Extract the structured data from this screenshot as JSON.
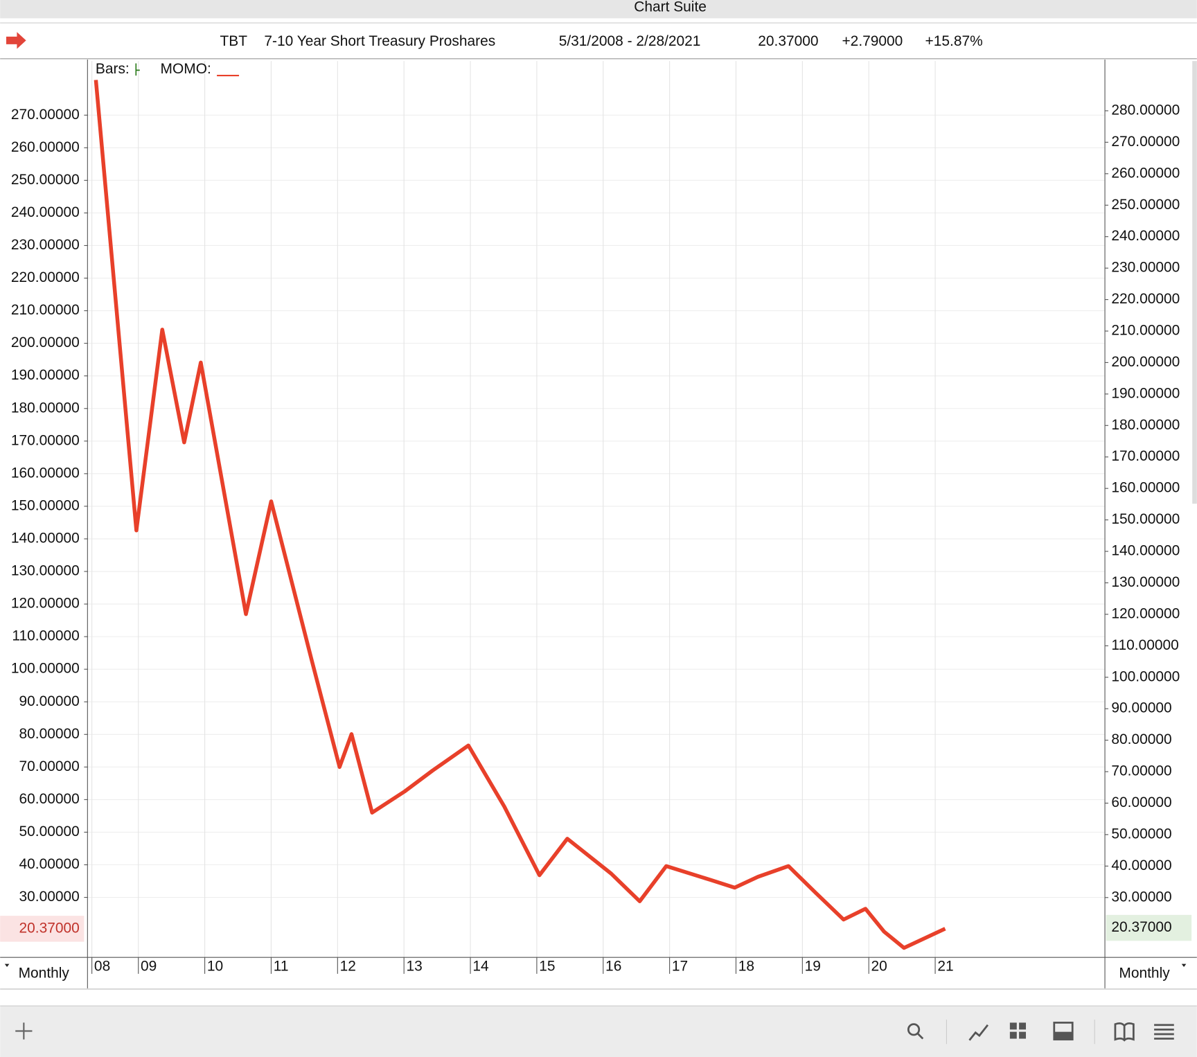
{
  "window": {
    "title": "Chart Suite",
    "header": {
      "symbol": "TBT",
      "name": "7-10 Year Short Treasury Proshares",
      "range": "5/31/2008 - 2/28/2021",
      "change": "+2.79000",
      "change_pct": "+15.87%"
    },
    "legend": {
      "bars": "Bars:",
      "momo": "MOMO:"
    },
    "period_left": "Monthly",
    "period_right": "Monthly"
  },
  "chart_data": {
    "type": "line",
    "title": "TBT 7-10 Year Short Treasury Proshares",
    "last_price": {
      "value": 20.37,
      "label": "20.37000"
    },
    "series": [
      {
        "name": "MOMO",
        "color": "#e8402a",
        "x": [
          2008.36,
          2008.97,
          2009.36,
          2009.69,
          2009.94,
          2010.62,
          2011.0,
          2011.61,
          2012.03,
          2012.21,
          2012.52,
          2013.01,
          2013.43,
          2013.97,
          2014.51,
          2015.04,
          2015.46,
          2016.12,
          2016.55,
          2016.95,
          2017.61,
          2017.98,
          2018.33,
          2018.79,
          2019.2,
          2019.62,
          2019.95,
          2020.23,
          2020.53,
          2021.15
        ],
        "values": [
          280.8,
          142.6,
          204.2,
          169.6,
          194.1,
          116.9,
          151.5,
          102.8,
          70.0,
          80.1,
          56.0,
          62.5,
          68.9,
          76.6,
          57.9,
          36.8,
          48.0,
          37.3,
          28.8,
          39.6,
          35.4,
          33.0,
          36.3,
          39.6,
          31.4,
          23.2,
          26.5,
          19.5,
          14.5,
          20.4
        ]
      }
    ],
    "xlim": [
      2008.24,
      2023.55
    ],
    "xticks": [
      {
        "value": 2008.3,
        "label": "08"
      },
      {
        "value": 2009,
        "label": "09"
      },
      {
        "value": 2010,
        "label": "10"
      },
      {
        "value": 2011,
        "label": "11"
      },
      {
        "value": 2012,
        "label": "12"
      },
      {
        "value": 2013,
        "label": "13"
      },
      {
        "value": 2014,
        "label": "14"
      },
      {
        "value": 2015,
        "label": "15"
      },
      {
        "value": 2016,
        "label": "16"
      },
      {
        "value": 2017,
        "label": "17"
      },
      {
        "value": 2018,
        "label": "18"
      },
      {
        "value": 2019,
        "label": "19"
      },
      {
        "value": 2020,
        "label": "20"
      },
      {
        "value": 2021,
        "label": "21"
      }
    ],
    "ylim": [
      11.7,
      286.6
    ],
    "yticks": [
      {
        "value": 30,
        "label": "30.00000"
      },
      {
        "value": 40,
        "label": "40.00000"
      },
      {
        "value": 50,
        "label": "50.00000"
      },
      {
        "value": 60,
        "label": "60.00000"
      },
      {
        "value": 70,
        "label": "70.00000"
      },
      {
        "value": 80,
        "label": "80.00000"
      },
      {
        "value": 90,
        "label": "90.00000"
      },
      {
        "value": 100,
        "label": "100.00000"
      },
      {
        "value": 110,
        "label": "110.00000"
      },
      {
        "value": 120,
        "label": "120.00000"
      },
      {
        "value": 130,
        "label": "130.00000"
      },
      {
        "value": 140,
        "label": "140.00000"
      },
      {
        "value": 150,
        "label": "150.00000"
      },
      {
        "value": 160,
        "label": "160.00000"
      },
      {
        "value": 170,
        "label": "170.00000"
      },
      {
        "value": 180,
        "label": "180.00000"
      },
      {
        "value": 190,
        "label": "190.00000"
      },
      {
        "value": 200,
        "label": "200.00000"
      },
      {
        "value": 210,
        "label": "210.00000"
      },
      {
        "value": 220,
        "label": "220.00000"
      },
      {
        "value": 230,
        "label": "230.00000"
      },
      {
        "value": 240,
        "label": "240.00000"
      },
      {
        "value": 250,
        "label": "250.00000"
      },
      {
        "value": 260,
        "label": "260.00000"
      },
      {
        "value": 270,
        "label": "270.00000"
      }
    ],
    "y2lim": [
      11.1,
      295.8
    ],
    "y2ticks": [
      {
        "value": 30,
        "label": "30.00000"
      },
      {
        "value": 40,
        "label": "40.00000"
      },
      {
        "value": 50,
        "label": "50.00000"
      },
      {
        "value": 60,
        "label": "60.00000"
      },
      {
        "value": 70,
        "label": "70.00000"
      },
      {
        "value": 80,
        "label": "80.00000"
      },
      {
        "value": 90,
        "label": "90.00000"
      },
      {
        "value": 100,
        "label": "100.00000"
      },
      {
        "value": 110,
        "label": "110.00000"
      },
      {
        "value": 120,
        "label": "120.00000"
      },
      {
        "value": 130,
        "label": "130.00000"
      },
      {
        "value": 140,
        "label": "140.00000"
      },
      {
        "value": 150,
        "label": "150.00000"
      },
      {
        "value": 160,
        "label": "160.00000"
      },
      {
        "value": 170,
        "label": "170.00000"
      },
      {
        "value": 180,
        "label": "180.00000"
      },
      {
        "value": 190,
        "label": "190.00000"
      },
      {
        "value": 200,
        "label": "200.00000"
      },
      {
        "value": 210,
        "label": "210.00000"
      },
      {
        "value": 220,
        "label": "220.00000"
      },
      {
        "value": 230,
        "label": "230.00000"
      },
      {
        "value": 240,
        "label": "240.00000"
      },
      {
        "value": 250,
        "label": "250.00000"
      },
      {
        "value": 260,
        "label": "260.00000"
      },
      {
        "value": 270,
        "label": "270.00000"
      },
      {
        "value": 280,
        "label": "280.00000"
      }
    ],
    "grid": true
  }
}
